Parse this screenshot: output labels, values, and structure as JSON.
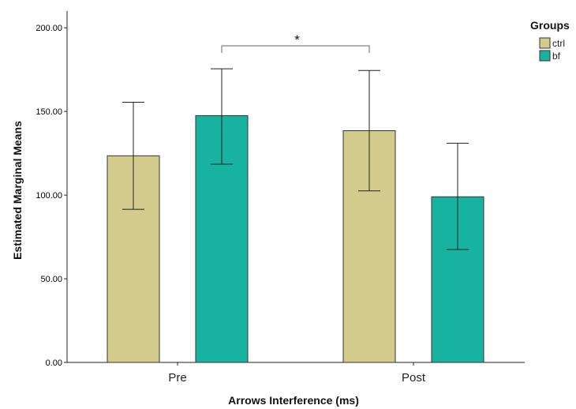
{
  "chart_data": {
    "type": "bar",
    "categories": [
      "Pre",
      "Post"
    ],
    "series": [
      {
        "name": "ctrl",
        "color": "#D3CB8C",
        "values": [
          123.5,
          138.5
        ],
        "error_low": [
          91.5,
          102.5
        ],
        "error_high": [
          155.5,
          174.5
        ]
      },
      {
        "name": "bf",
        "color": "#17B3A0",
        "values": [
          147.5,
          99.0
        ],
        "error_low": [
          118.5,
          67.5
        ],
        "error_high": [
          175.5,
          131.0
        ]
      }
    ],
    "xlabel": "Arrows Interference (ms)",
    "ylabel": "Estimated Marginal Means",
    "ylim": [
      0,
      210
    ],
    "yticks": [
      "0.00",
      "50.00",
      "100.00",
      "150.00",
      "200.00"
    ],
    "ytick_values": [
      0,
      50,
      100,
      150,
      200
    ],
    "legend": {
      "title": "Groups",
      "placement": "top-right"
    },
    "grid": false,
    "annotation": {
      "text": "*",
      "bracket_from": "Pre bf",
      "bracket_to": "Post ctrl"
    }
  }
}
